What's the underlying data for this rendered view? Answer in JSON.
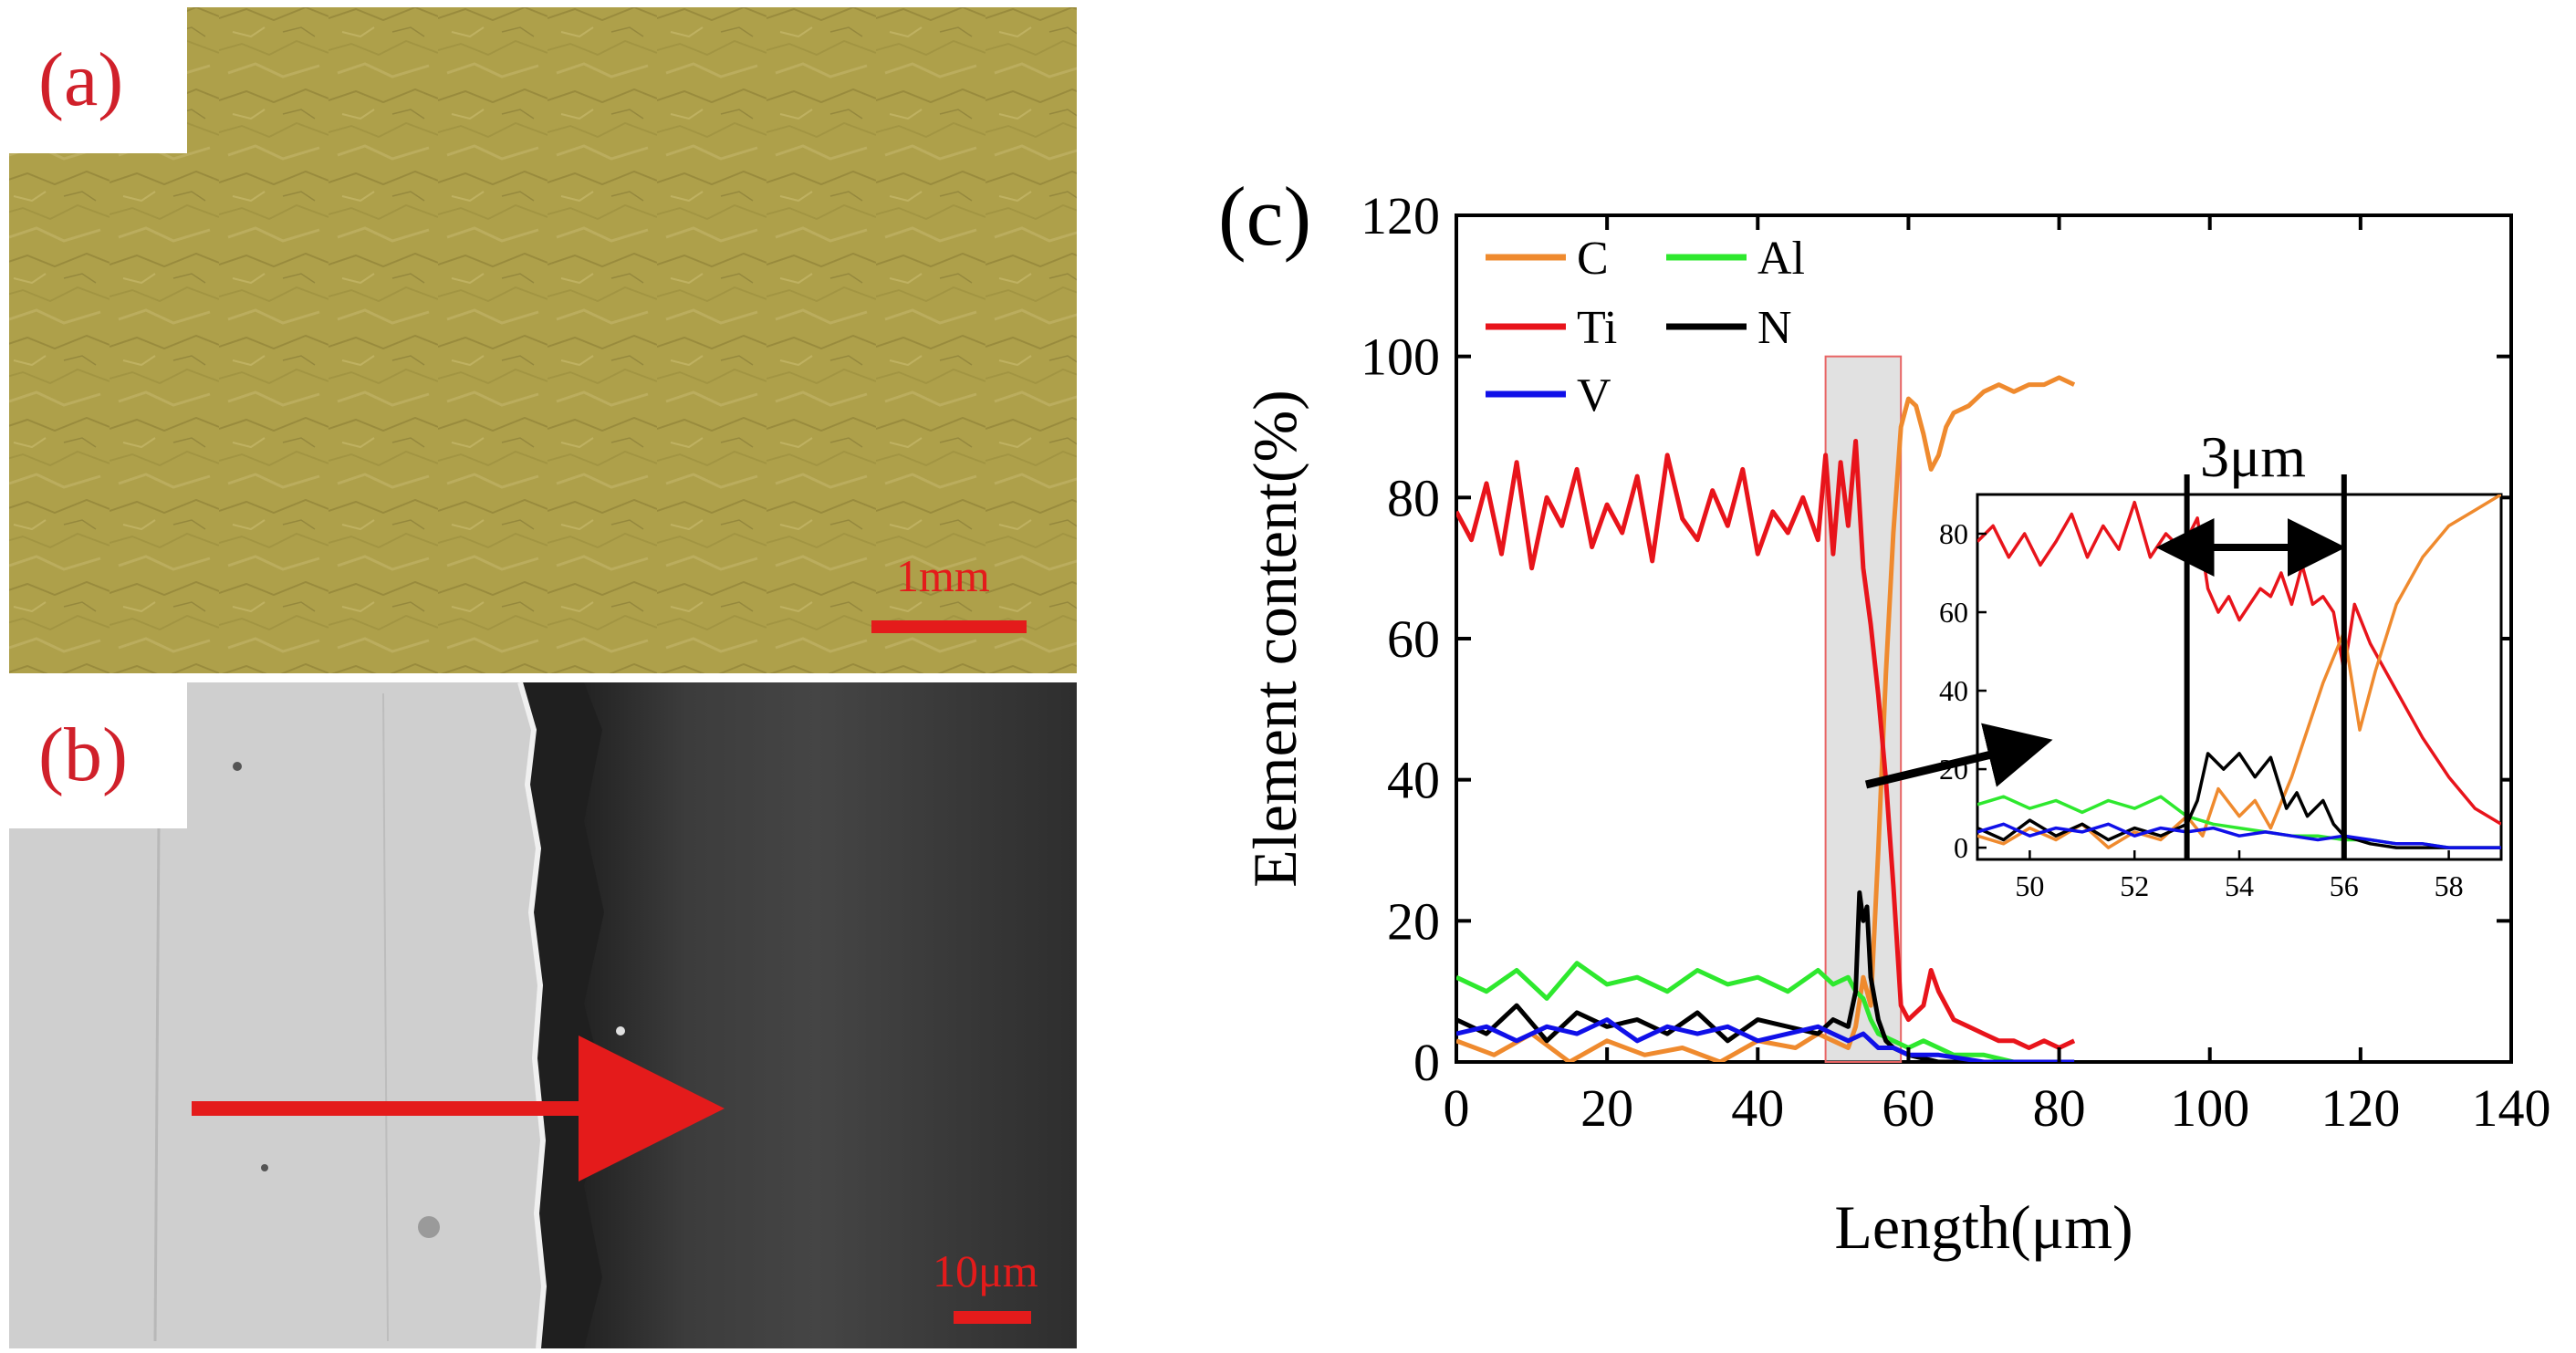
{
  "panels": {
    "a": {
      "label": "(a)",
      "scale_bar_text": "1mm",
      "colors": {
        "base": "#b3a54e",
        "dark": "#8a7d32",
        "light": "#d2c478",
        "label": "#d0202a",
        "scale": "#e41b1b"
      }
    },
    "b": {
      "label": "(b)",
      "scale_bar_text": "10μm",
      "colors": {
        "substrate": "#cfcfcf",
        "coating": "#3a3a3a",
        "interface": "#1f1f1f",
        "arrow": "#e41b1b",
        "label": "#d0202a"
      }
    },
    "c": {
      "label": "(c)"
    }
  },
  "chart_data": [
    {
      "id": "main",
      "type": "line",
      "title": "",
      "xlabel": "Length(μm)",
      "ylabel": "Element content(%)",
      "xlim": [
        0,
        140
      ],
      "ylim": [
        0,
        120
      ],
      "xticks": [
        "0",
        "20",
        "40",
        "60",
        "80",
        "100",
        "120",
        "140"
      ],
      "yticks": [
        "0",
        "20",
        "40",
        "60",
        "80",
        "100",
        "120"
      ],
      "highlight_region": [
        49,
        59
      ],
      "legend": [
        {
          "name": "C",
          "color": "#ef8a2e"
        },
        {
          "name": "Al",
          "color": "#2ee82e"
        },
        {
          "name": "Ti",
          "color": "#e8141b"
        },
        {
          "name": "N",
          "color": "#000000"
        },
        {
          "name": "V",
          "color": "#1010e8"
        }
      ],
      "series": [
        {
          "name": "C",
          "color": "#ef8a2e",
          "x": [
            0,
            5,
            10,
            15,
            20,
            25,
            30,
            35,
            40,
            45,
            48,
            50,
            52,
            53,
            54,
            55,
            56,
            57,
            58,
            59,
            60,
            61,
            62,
            63,
            64,
            65,
            66,
            68,
            70,
            72,
            74,
            76,
            78,
            80,
            82
          ],
          "y": [
            3,
            1,
            4,
            0,
            3,
            1,
            2,
            0,
            3,
            2,
            4,
            3,
            2,
            5,
            12,
            8,
            30,
            55,
            75,
            90,
            94,
            93,
            89,
            84,
            86,
            90,
            92,
            93,
            95,
            96,
            95,
            96,
            96,
            97,
            96
          ]
        },
        {
          "name": "Ti",
          "color": "#e8141b",
          "x": [
            0,
            2,
            4,
            6,
            8,
            10,
            12,
            14,
            16,
            18,
            20,
            22,
            24,
            26,
            28,
            30,
            32,
            34,
            36,
            38,
            40,
            42,
            44,
            46,
            48,
            49,
            50,
            51,
            52,
            53,
            54,
            55,
            56,
            57,
            58,
            59,
            60,
            62,
            63,
            64,
            66,
            68,
            70,
            72,
            74,
            76,
            78,
            80,
            82
          ],
          "y": [
            78,
            74,
            82,
            72,
            85,
            70,
            80,
            76,
            84,
            73,
            79,
            75,
            83,
            71,
            86,
            77,
            74,
            81,
            76,
            84,
            72,
            78,
            75,
            80,
            74,
            86,
            72,
            85,
            76,
            88,
            70,
            62,
            52,
            40,
            25,
            8,
            6,
            8,
            13,
            10,
            6,
            5,
            4,
            3,
            3,
            2,
            3,
            2,
            3
          ]
        },
        {
          "name": "Al",
          "color": "#2ee82e",
          "x": [
            0,
            4,
            8,
            12,
            16,
            20,
            24,
            28,
            32,
            36,
            40,
            44,
            48,
            50,
            52,
            53,
            54,
            55,
            56,
            58,
            60,
            62,
            64,
            66,
            70,
            74,
            78,
            82
          ],
          "y": [
            12,
            10,
            13,
            9,
            14,
            11,
            12,
            10,
            13,
            11,
            12,
            10,
            13,
            11,
            12,
            10,
            9,
            6,
            4,
            3,
            2,
            3,
            2,
            1,
            1,
            0,
            0,
            0
          ]
        },
        {
          "name": "N",
          "color": "#000000",
          "x": [
            0,
            4,
            8,
            12,
            16,
            20,
            24,
            28,
            32,
            36,
            40,
            44,
            48,
            50,
            52,
            53,
            53.5,
            54,
            54.5,
            55,
            56,
            57,
            58,
            60,
            64,
            70,
            76,
            82
          ],
          "y": [
            6,
            4,
            8,
            3,
            7,
            5,
            6,
            4,
            7,
            3,
            6,
            5,
            4,
            6,
            5,
            10,
            24,
            20,
            22,
            12,
            6,
            3,
            2,
            1,
            0,
            0,
            0,
            0
          ]
        },
        {
          "name": "V",
          "color": "#1010e8",
          "x": [
            0,
            4,
            8,
            12,
            16,
            20,
            24,
            28,
            32,
            36,
            40,
            44,
            48,
            50,
            52,
            54,
            56,
            58,
            60,
            64,
            70,
            76,
            82
          ],
          "y": [
            4,
            5,
            3,
            5,
            4,
            6,
            3,
            5,
            4,
            5,
            3,
            4,
            5,
            4,
            3,
            4,
            2,
            2,
            1,
            1,
            0,
            0,
            0
          ]
        }
      ]
    },
    {
      "id": "inset",
      "type": "line",
      "xlim": [
        49,
        59
      ],
      "ylim": [
        -3,
        90
      ],
      "xticks": [
        "50",
        "52",
        "54",
        "56",
        "58"
      ],
      "yticks": [
        "0",
        "20",
        "40",
        "60",
        "80"
      ],
      "annotation": "3μm",
      "marker_lines_x": [
        53,
        56
      ],
      "series": [
        {
          "name": "Ti",
          "color": "#e8141b",
          "x": [
            49,
            49.3,
            49.6,
            49.9,
            50.2,
            50.5,
            50.8,
            51.1,
            51.4,
            51.7,
            52,
            52.3,
            52.6,
            52.9,
            53.2,
            53.4,
            53.6,
            53.8,
            54,
            54.2,
            54.4,
            54.6,
            54.8,
            55,
            55.2,
            55.4,
            55.6,
            55.8,
            56,
            56.2,
            56.5,
            57,
            57.5,
            58,
            58.5,
            59
          ],
          "y": [
            78,
            82,
            74,
            80,
            72,
            78,
            85,
            74,
            82,
            76,
            88,
            74,
            80,
            76,
            84,
            66,
            60,
            64,
            58,
            62,
            66,
            64,
            70,
            62,
            72,
            62,
            64,
            60,
            45,
            62,
            52,
            40,
            28,
            18,
            10,
            6
          ]
        },
        {
          "name": "C",
          "color": "#ef8a2e",
          "x": [
            49,
            49.5,
            50,
            50.5,
            51,
            51.5,
            52,
            52.5,
            53,
            53.3,
            53.6,
            54,
            54.3,
            54.6,
            55,
            55.3,
            55.6,
            56,
            56.3,
            56.6,
            57,
            57.5,
            58,
            58.5,
            59
          ],
          "y": [
            3,
            1,
            5,
            2,
            6,
            0,
            4,
            2,
            8,
            3,
            15,
            8,
            12,
            5,
            18,
            30,
            42,
            55,
            30,
            45,
            62,
            74,
            82,
            86,
            90
          ]
        },
        {
          "name": "Al",
          "color": "#2ee82e",
          "x": [
            49,
            49.5,
            50,
            50.5,
            51,
            51.5,
            52,
            52.5,
            53,
            53.5,
            54,
            54.5,
            55,
            55.5,
            56,
            56.5,
            57,
            57.5,
            58,
            59
          ],
          "y": [
            11,
            13,
            10,
            12,
            9,
            12,
            10,
            13,
            8,
            6,
            5,
            4,
            3,
            3,
            2,
            2,
            1,
            1,
            0,
            0
          ]
        },
        {
          "name": "N",
          "color": "#000000",
          "x": [
            49,
            49.5,
            50,
            50.5,
            51,
            51.5,
            52,
            52.5,
            53,
            53.2,
            53.4,
            53.7,
            54,
            54.3,
            54.6,
            54.9,
            55.1,
            55.3,
            55.6,
            55.8,
            56,
            56.5,
            57,
            58,
            59
          ],
          "y": [
            5,
            2,
            7,
            3,
            6,
            2,
            5,
            3,
            6,
            12,
            24,
            20,
            24,
            18,
            23,
            10,
            14,
            8,
            12,
            6,
            3,
            1,
            0,
            0,
            0
          ]
        },
        {
          "name": "V",
          "color": "#1010e8",
          "x": [
            49,
            49.5,
            50,
            50.5,
            51,
            51.5,
            52,
            52.5,
            53,
            53.5,
            54,
            54.5,
            55,
            55.5,
            56,
            56.5,
            57,
            57.5,
            58,
            59
          ],
          "y": [
            4,
            6,
            3,
            5,
            4,
            6,
            3,
            5,
            4,
            5,
            3,
            4,
            3,
            2,
            3,
            2,
            1,
            1,
            0,
            0
          ]
        }
      ]
    }
  ]
}
